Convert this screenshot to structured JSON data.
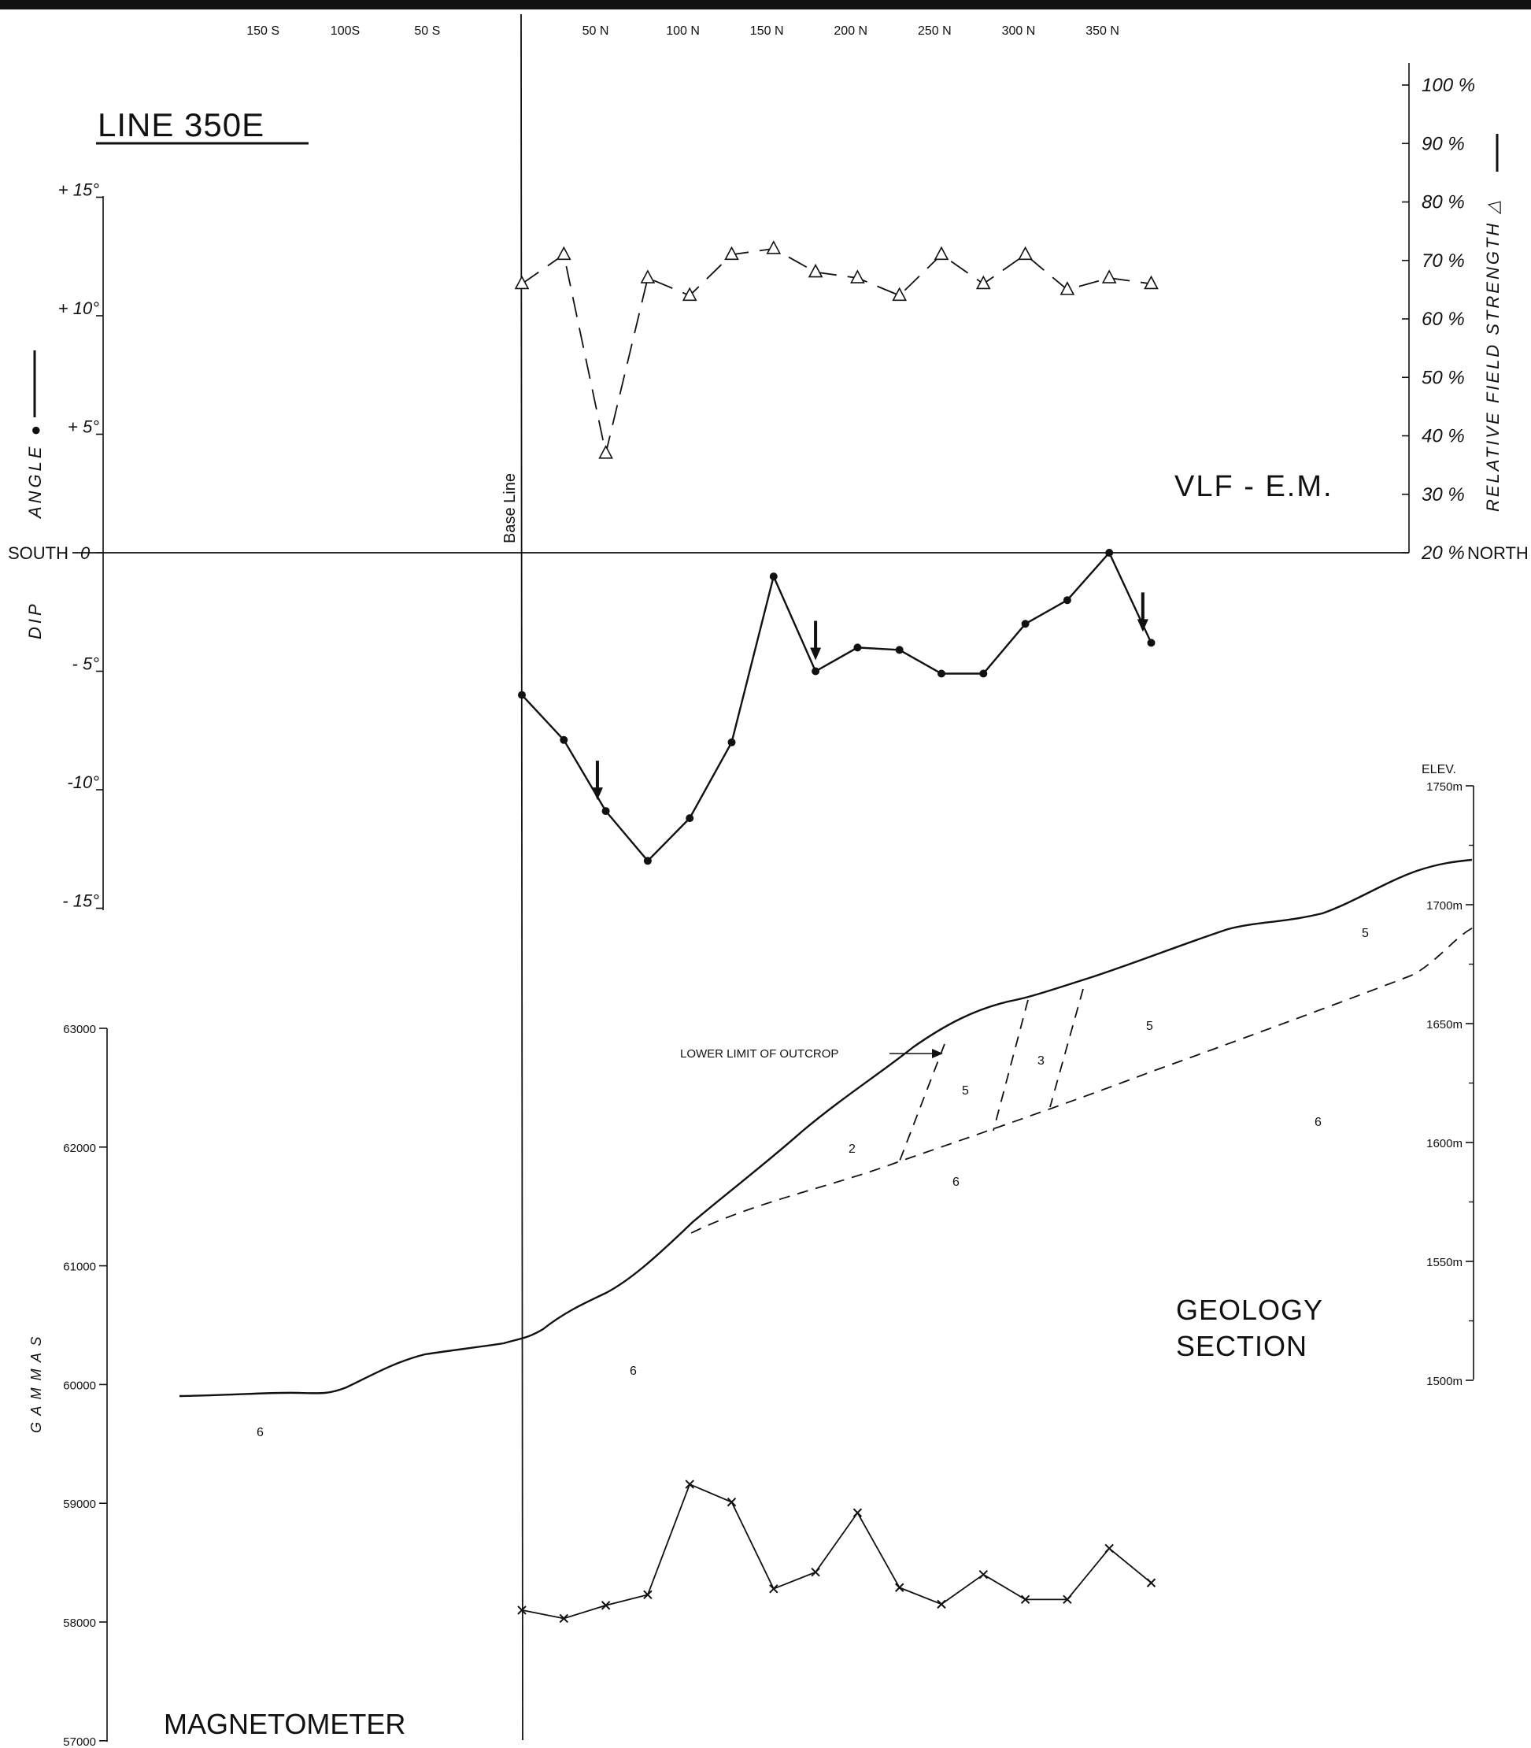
{
  "figure": {
    "line_title": "LINE 350E",
    "base_line_label": "Base Line",
    "south_label": "SOUTH",
    "north_label": "NORTH",
    "vlf_label": "VLF - E.M.",
    "geology_label_1": "GEOLOGY",
    "geology_label_2": "SECTION",
    "magnetometer_label": "MAGNETOMETER",
    "outcrop_label": "LOWER  LIMIT  OF  OUTCROP",
    "elev_label": "ELEV."
  },
  "colors": {
    "ink": "#111111",
    "background": "#ffffff"
  },
  "chart_data": [
    {
      "type": "line",
      "name": "vlf-relative-field-strength",
      "xlabel": "",
      "ylabel": "RELATIVE  FIELD  STRENGTH  △",
      "x_ticks": [
        "150 S",
        "100S",
        "50 S",
        "50 N",
        "100 N",
        "150 N",
        "200 N",
        "250 N",
        "300 N",
        "350 N"
      ],
      "y_ticks": [
        "100 %",
        "90 %",
        "80 %",
        "70 %",
        "60 %",
        "50 %",
        "40 %",
        "30 %",
        "20 %"
      ],
      "ylim": [
        20,
        100
      ],
      "x": [
        0,
        25,
        50,
        75,
        100,
        125,
        150,
        175,
        200,
        225,
        250,
        275,
        300,
        325,
        350,
        375
      ],
      "values": [
        66,
        71,
        37,
        67,
        64,
        71,
        72,
        68,
        67,
        64,
        71,
        66,
        71,
        65,
        67,
        66
      ],
      "marker": "triangle",
      "line_style": "dashed"
    },
    {
      "type": "line",
      "name": "vlf-dip-angle",
      "xlabel": "",
      "ylabel": "DIP   ANGLE ●",
      "y_ticks": [
        "+ 15°",
        "+ 10°",
        "+ 5°",
        "0",
        "- 5°",
        "-10°",
        "- 15°"
      ],
      "ylim": [
        -15,
        15
      ],
      "x": [
        0,
        25,
        50,
        75,
        100,
        125,
        150,
        175,
        200,
        225,
        250,
        275,
        300,
        325,
        350,
        375
      ],
      "values": [
        -6,
        -7.9,
        -10.9,
        -13,
        -11.2,
        -8,
        -1,
        -5,
        -4,
        -4.1,
        -5.1,
        -5.1,
        -3,
        -2,
        0,
        -3.8
      ],
      "marker": "dot",
      "line_style": "solid",
      "crossover_arrows_at": [
        45,
        175,
        370
      ]
    },
    {
      "type": "line",
      "name": "magnetometer",
      "xlabel": "",
      "ylabel": "G A M M A S",
      "y_ticks": [
        "63000",
        "62000",
        "61000",
        "60000",
        "59000",
        "58000",
        "57000"
      ],
      "ylim": [
        57000,
        63000
      ],
      "x": [
        0,
        25,
        50,
        75,
        100,
        125,
        150,
        175,
        200,
        225,
        250,
        275,
        300,
        325,
        350,
        375
      ],
      "values": [
        58100,
        58030,
        58140,
        58230,
        59160,
        59010,
        58280,
        58420,
        58920,
        58290,
        58150,
        58400,
        58190,
        58190,
        58620,
        58330
      ],
      "marker": "x",
      "line_style": "solid"
    },
    {
      "type": "area",
      "name": "geology-section",
      "xlabel": "",
      "ylabel": "ELEV.",
      "y_ticks": [
        "1750m",
        "1700m",
        "1650m",
        "1600m",
        "1550m",
        "1500m"
      ],
      "ylim": [
        1500,
        1750
      ],
      "unit_labels": [
        "2",
        "3",
        "5",
        "5",
        "5",
        "6",
        "6",
        "6",
        "6"
      ]
    }
  ]
}
